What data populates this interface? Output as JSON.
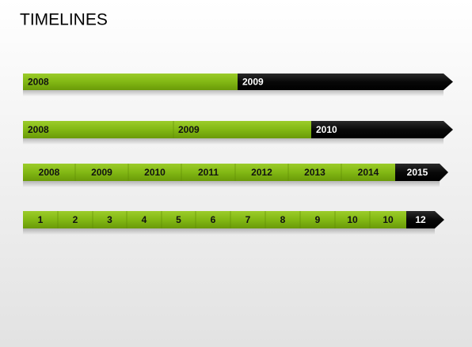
{
  "title": "TIMELINES",
  "timelines": [
    {
      "segments": [
        "2008",
        "2009"
      ]
    },
    {
      "segments": [
        "2008",
        "2009",
        "2010"
      ]
    },
    {
      "segments": [
        "2008",
        "2009",
        "2010",
        "2011",
        "2012",
        "2013",
        "2014",
        "2015"
      ]
    },
    {
      "segments": [
        "1",
        "2",
        "3",
        "4",
        "5",
        "6",
        "7",
        "8",
        "9",
        "10",
        "10",
        "12"
      ]
    }
  ]
}
